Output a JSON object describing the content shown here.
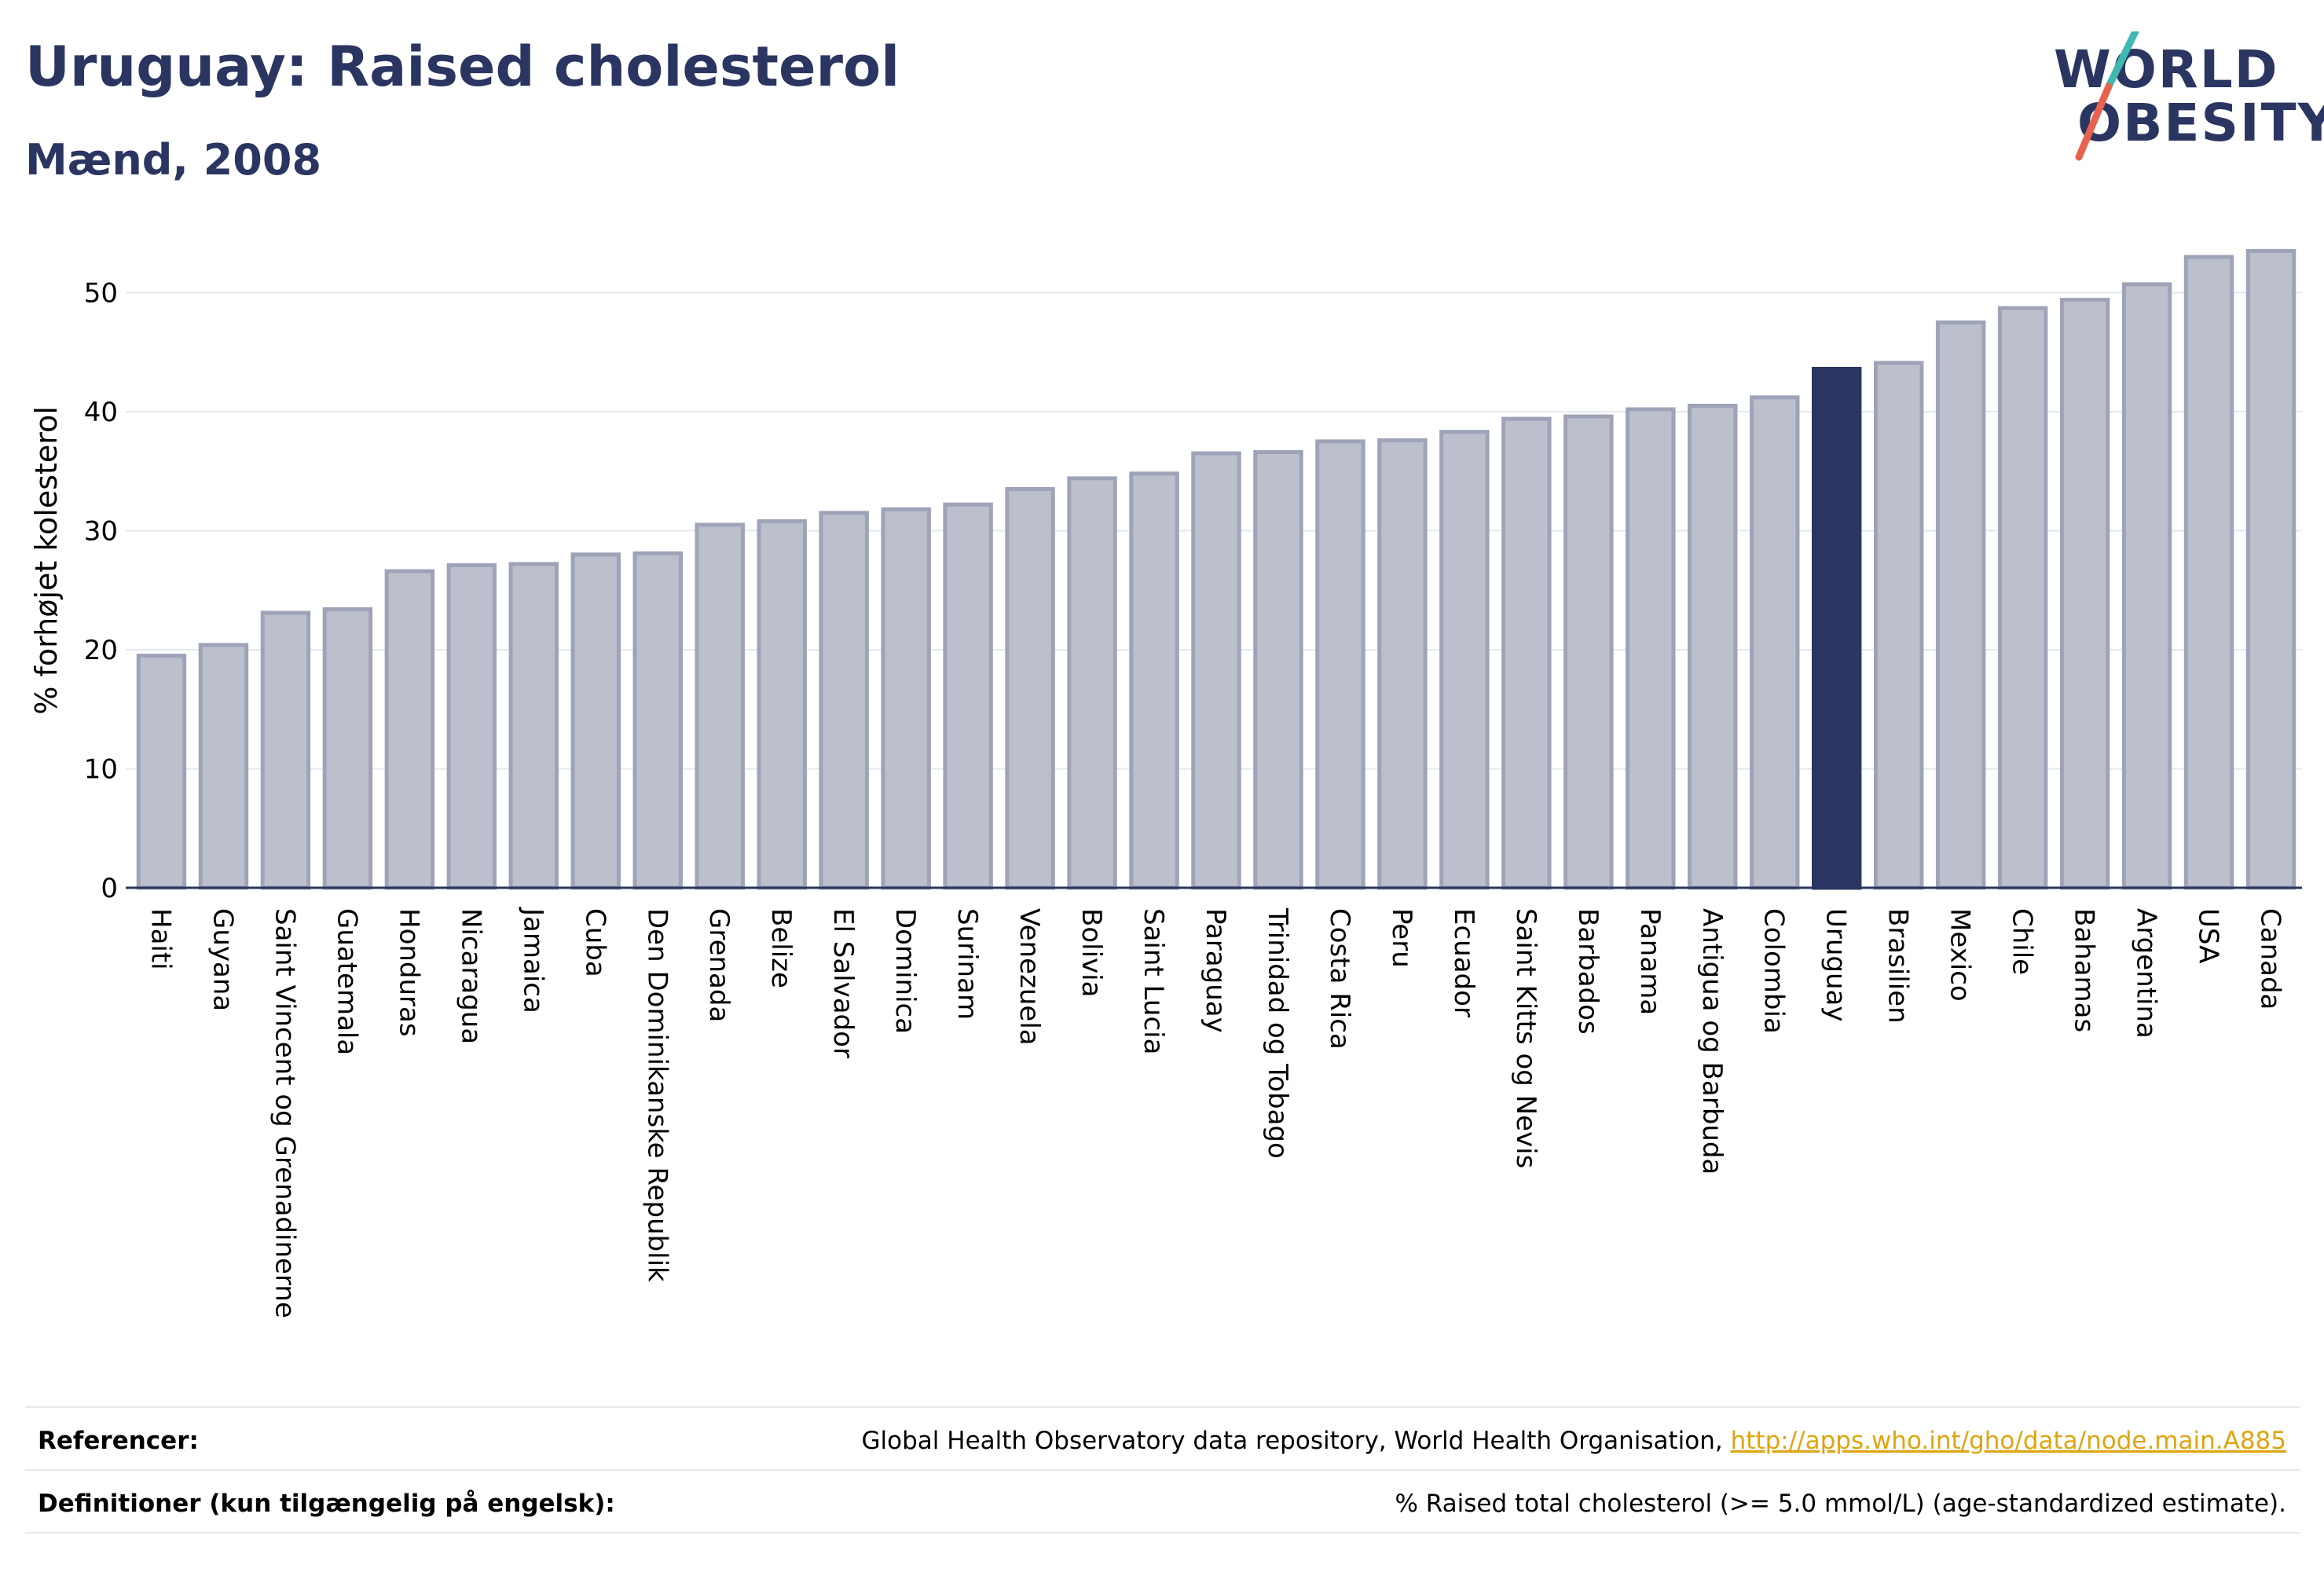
{
  "header": {
    "title": "Uruguay: Raised cholesterol",
    "subtitle": "Mænd, 2008"
  },
  "logo": {
    "line1": "WORLD",
    "line2": "OBESITY",
    "colors": {
      "text": "#2b3561",
      "slash_top": "#3fb8b0",
      "slash_bottom": "#e8634f"
    }
  },
  "colors": {
    "bar_default": "#bcc0cd",
    "bar_border": "#9ea3b8",
    "bar_highlight": "#2b3561",
    "grid": "#e6e8ef",
    "axis": "#2b3561"
  },
  "chart_data": {
    "type": "bar",
    "ylabel": "% forhøjet kolesterol",
    "xlabel": "",
    "ylim": [
      0,
      55
    ],
    "yticks": [
      0,
      10,
      20,
      30,
      40,
      50
    ],
    "grid": true,
    "highlight": "Uruguay",
    "categories": [
      "Haiti",
      "Guyana",
      "Saint Vincent og Grenadinerne",
      "Guatemala",
      "Honduras",
      "Nicaragua",
      "Jamaica",
      "Cuba",
      "Den Dominikanske Republik",
      "Grenada",
      "Belize",
      "El Salvador",
      "Dominica",
      "Surinam",
      "Venezuela",
      "Bolivia",
      "Saint Lucia",
      "Paraguay",
      "Trinidad og Tobago",
      "Costa Rica",
      "Peru",
      "Ecuador",
      "Saint Kitts og Nevis",
      "Barbados",
      "Panama",
      "Antigua og Barbuda",
      "Colombia",
      "Uruguay",
      "Brasilien",
      "Mexico",
      "Chile",
      "Bahamas",
      "Argentina",
      "USA",
      "Canada"
    ],
    "values": [
      19.5,
      20.4,
      23.1,
      23.4,
      26.6,
      27.1,
      27.2,
      28.0,
      28.1,
      30.5,
      30.8,
      31.5,
      31.8,
      32.2,
      33.5,
      34.4,
      34.8,
      36.5,
      36.6,
      37.5,
      37.6,
      38.3,
      39.4,
      39.6,
      40.2,
      40.5,
      41.2,
      43.6,
      44.1,
      47.5,
      48.7,
      49.4,
      50.7,
      53.0,
      53.5
    ]
  },
  "footer": {
    "references_label": "Referencer:",
    "references_text": "Global Health Observatory data repository, World Health Organisation, ",
    "references_link": "http://apps.who.int/gho/data/node.main.A885",
    "definitions_label": "Definitioner (kun tilgængelig på engelsk):",
    "definitions_text": "% Raised total cholesterol (>= 5.0 mmol/L) (age-standardized estimate)."
  }
}
